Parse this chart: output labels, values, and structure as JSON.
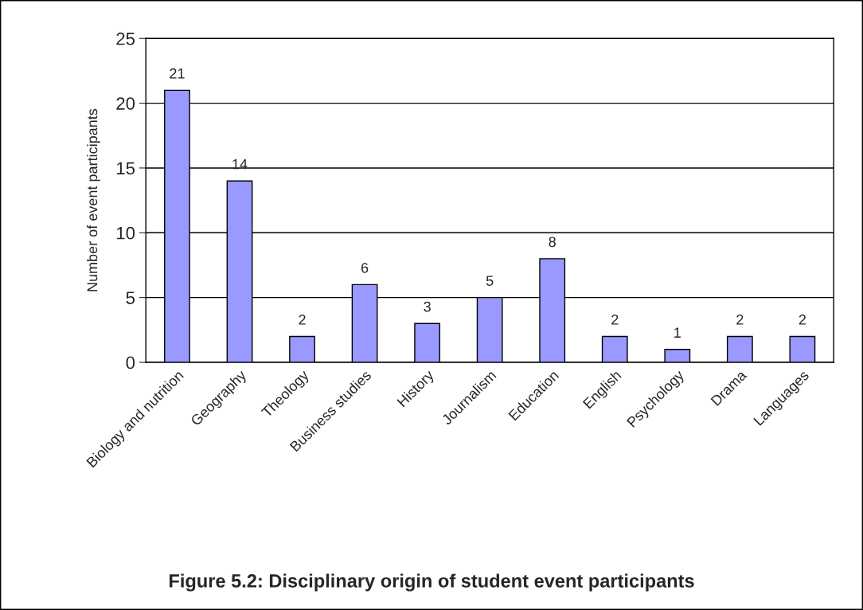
{
  "chart_data": {
    "type": "bar",
    "title": "Figure 5.2: Disciplinary origin of student event participants",
    "ylabel": "Number of event participants",
    "categories": [
      "Biology and nutrition",
      "Geography",
      "Theology",
      "Business studies",
      "History",
      "Journalism",
      "Education",
      "English",
      "Psychology",
      "Drama",
      "Languages"
    ],
    "values": [
      21,
      14,
      2,
      6,
      3,
      5,
      8,
      2,
      1,
      2,
      2
    ],
    "color": "#9999ff",
    "ylim": [
      0,
      25
    ],
    "yticks": [
      0,
      5,
      10,
      15,
      20,
      25
    ],
    "grid": "y",
    "data_labels": true,
    "legend": false
  }
}
